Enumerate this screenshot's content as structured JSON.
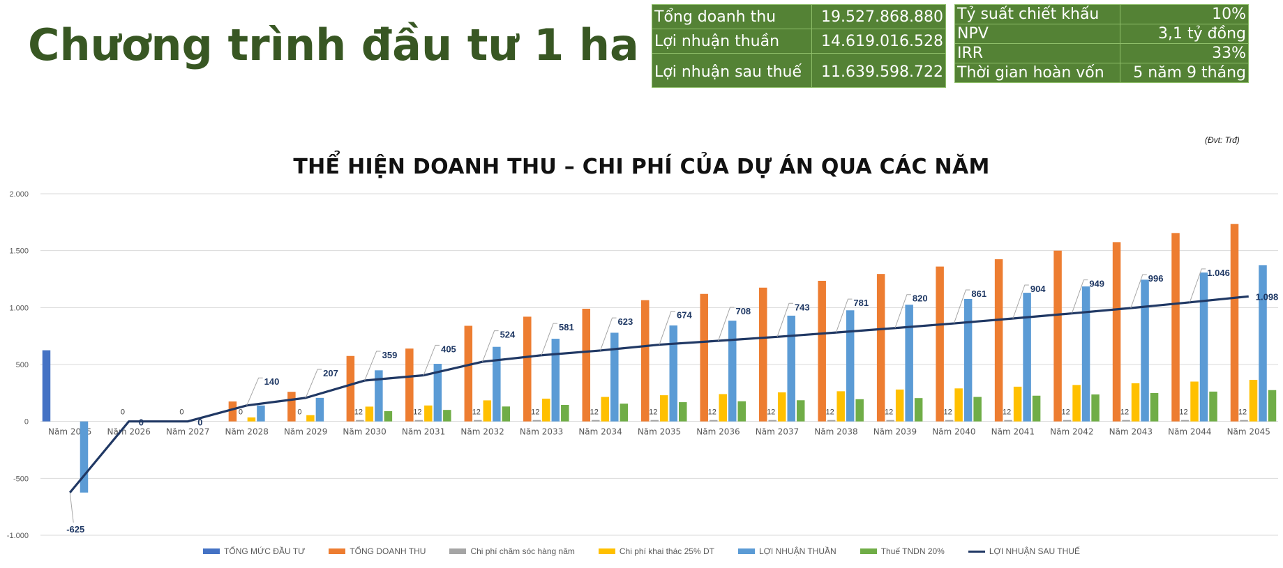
{
  "header": {
    "title": "Chương trình đầu tư 1 ha"
  },
  "kpi_left": [
    {
      "label": "Tổng doanh thu",
      "value": "19.527.868.880"
    },
    {
      "label": "Lợi nhuận thuần",
      "value": "14.619.016.528"
    },
    {
      "label": "Lợi nhuận sau thuế",
      "value": "11.639.598.722"
    }
  ],
  "kpi_right": [
    {
      "label": "Tỷ suất chiết khấu",
      "value": "10%"
    },
    {
      "label": "NPV",
      "value": "3,1 tỷ đồng"
    },
    {
      "label": "IRR",
      "value": "33%"
    },
    {
      "label": "Thời gian hoàn vốn",
      "value": "5 năm 9 tháng"
    }
  ],
  "unit_note": "(Đvt: Trđ)",
  "colors": {
    "title_green": "#385723",
    "table_green": "#548235",
    "invest": "#4472C4",
    "revenue": "#ED7D31",
    "care_cost": "#A5A5A5",
    "exploit_cost": "#FFC000",
    "net_profit": "#5B9BD5",
    "tax": "#70AD47",
    "after_tax": "#203864"
  },
  "chart_data": {
    "type": "bar",
    "title": "THỂ HIỆN DOANH THU – CHI PHÍ CỦA DỰ ÁN QUA CÁC NĂM",
    "xlabel": "",
    "ylabel": "",
    "ylim": [
      -1000,
      2000
    ],
    "yticks": [
      -1000,
      -500,
      0,
      500,
      1000,
      1500,
      2000
    ],
    "ytick_labels": [
      "-1.000",
      "-500",
      "0",
      "500",
      "1.000",
      "1.500",
      "2.000"
    ],
    "grid": true,
    "legend_position": "bottom",
    "categories": [
      "Năm 2025",
      "Năm 2026",
      "Năm 2027",
      "Năm 2028",
      "Năm 2029",
      "Năm 2030",
      "Năm 2031",
      "Năm 2032",
      "Năm 2033",
      "Năm 2034",
      "Năm 2035",
      "Năm 2036",
      "Năm 2037",
      "Năm 2038",
      "Năm 2039",
      "Năm 2040",
      "Năm 2041",
      "Năm 2042",
      "Năm 2043",
      "Năm 2044",
      "Năm 2045"
    ],
    "series": [
      {
        "name": "TỔNG MỨC ĐẦU TƯ",
        "type": "bar",
        "color_key": "invest",
        "values": [
          625,
          0,
          0,
          0,
          0,
          0,
          0,
          0,
          0,
          0,
          0,
          0,
          0,
          0,
          0,
          0,
          0,
          0,
          0,
          0,
          0
        ]
      },
      {
        "name": "TỔNG DOANH THU",
        "type": "bar",
        "color_key": "revenue",
        "values": [
          0,
          0,
          0,
          175,
          260,
          575,
          640,
          840,
          920,
          990,
          1065,
          1120,
          1175,
          1235,
          1295,
          1360,
          1425,
          1500,
          1575,
          1655,
          1735
        ]
      },
      {
        "name": "Chi phí chăm sóc hàng năm",
        "type": "bar",
        "color_key": "care_cost",
        "values": [
          0,
          0,
          0,
          0,
          0,
          12,
          12,
          12,
          12,
          12,
          12,
          12,
          12,
          12,
          12,
          12,
          12,
          12,
          12,
          12,
          12
        ],
        "data_labels": [
          "",
          "0",
          "0",
          "0",
          "0",
          "12",
          "12",
          "12",
          "12",
          "12",
          "12",
          "12",
          "12",
          "12",
          "12",
          "12",
          "12",
          "12",
          "12",
          "12",
          "12"
        ]
      },
      {
        "name": "Chi phí khai thác 25% DT",
        "type": "bar",
        "color_key": "exploit_cost",
        "values": [
          0,
          0,
          0,
          35,
          55,
          130,
          140,
          185,
          200,
          215,
          230,
          240,
          255,
          265,
          280,
          290,
          305,
          320,
          335,
          350,
          365
        ]
      },
      {
        "name": "LỢI NHUẬN THUẦN",
        "type": "bar",
        "color_key": "net_profit",
        "values": [
          -625,
          0,
          0,
          140,
          207,
          449,
          506,
          655,
          726,
          779,
          843,
          885,
          929,
          976,
          1025,
          1076,
          1130,
          1186,
          1245,
          1308,
          1373
        ]
      },
      {
        "name": "Thuế TNDN 20%",
        "type": "bar",
        "color_key": "tax",
        "values": [
          0,
          0,
          0,
          0,
          0,
          90,
          101,
          131,
          145,
          156,
          169,
          177,
          186,
          195,
          205,
          215,
          226,
          237,
          249,
          262,
          275
        ]
      },
      {
        "name": "LỢI NHUẬN SAU THUẾ",
        "type": "line",
        "color_key": "after_tax",
        "values": [
          -625,
          0,
          0,
          140,
          207,
          359,
          405,
          524,
          581,
          623,
          674,
          708,
          743,
          781,
          820,
          861,
          904,
          949,
          996,
          1046,
          1098
        ],
        "data_labels": [
          "-625",
          "0",
          "0",
          "140",
          "207",
          "359",
          "405",
          "524",
          "581",
          "623",
          "674",
          "708",
          "743",
          "781",
          "820",
          "861",
          "904",
          "949",
          "996",
          "1.046",
          "1.098"
        ]
      }
    ]
  }
}
